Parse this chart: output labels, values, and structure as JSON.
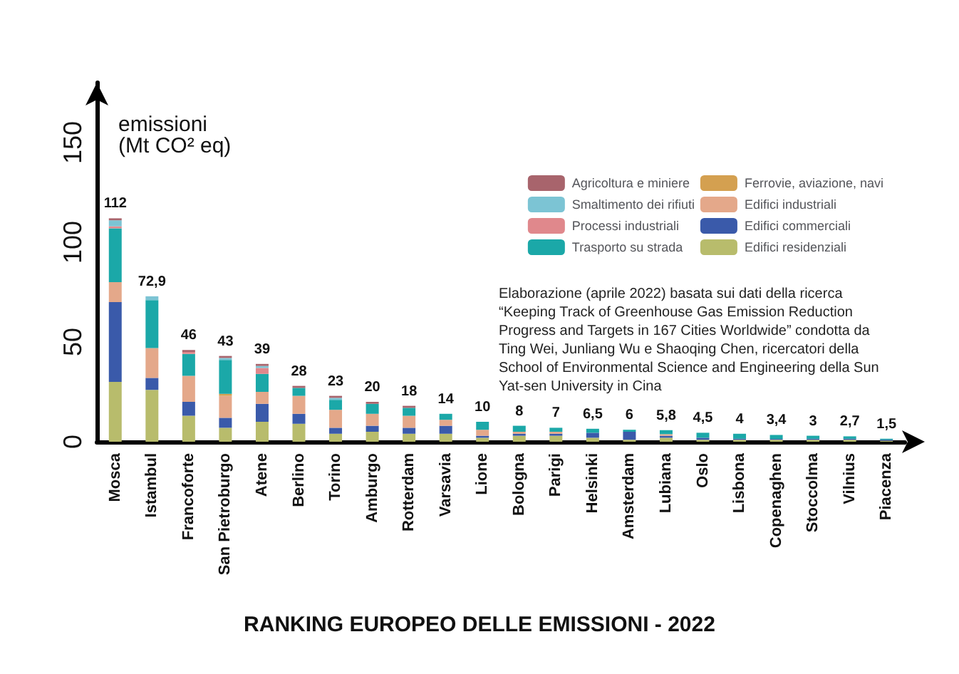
{
  "chart_data": {
    "type": "bar",
    "stacked": true,
    "title": "RANKING EUROPEO DELLE EMISSIONI - 2022",
    "ylabel": "emissioni\n(Mt CO² eq)",
    "categories": [
      "Mosca",
      "Istambul",
      "Francoforte",
      "San Pietroburgo",
      "Atene",
      "Berlino",
      "Torino",
      "Amburgo",
      "Rotterdam",
      "Varsavia",
      "Lione",
      "Bologna",
      "Parigi",
      "Helsinki",
      "Amsterdam",
      "Lubiana",
      "Oslo",
      "Lisbona",
      "Copenaghen",
      "Stoccolma",
      "Vilnius",
      "Piacenza"
    ],
    "series": [
      {
        "name": "Edifici residenziali",
        "color": "#b8bc6c",
        "values": [
          30,
          26,
          13,
          7,
          10,
          9,
          4,
          5,
          4,
          4,
          2,
          3,
          3,
          2,
          1,
          2,
          1,
          1,
          1,
          1,
          1,
          0.5
        ]
      },
      {
        "name": "Edifici commerciali",
        "color": "#3a5aaa",
        "values": [
          40,
          6,
          7,
          5,
          9,
          5,
          3,
          3,
          3,
          4,
          1,
          1,
          1,
          2.5,
          4,
          1,
          1,
          0.5,
          0.4,
          0.5,
          0.5,
          0.5
        ]
      },
      {
        "name": "Edifici industriali",
        "color": "#e4a88a",
        "values": [
          10,
          15,
          13,
          11,
          6,
          9,
          9,
          6,
          6,
          3,
          3,
          1,
          1,
          0,
          0,
          0.8,
          0,
          0,
          0,
          0,
          0,
          0
        ]
      },
      {
        "name": "Ferrovie, aviazione, navi",
        "color": "#d4a050",
        "values": [
          0,
          0,
          0,
          1,
          0,
          0,
          0,
          0,
          0,
          0,
          0,
          0,
          0,
          0,
          0,
          0,
          0,
          0,
          0,
          0,
          0,
          0
        ]
      },
      {
        "name": "Trasporto su strada",
        "color": "#1ba8a8",
        "values": [
          27,
          24,
          11,
          17,
          9,
          4,
          5,
          5,
          4,
          3,
          4,
          3,
          2,
          2,
          1,
          2,
          2.5,
          2.5,
          2,
          1.5,
          1.2,
          0.5
        ]
      },
      {
        "name": "Processi industriali",
        "color": "#e0888c",
        "values": [
          1,
          0,
          1,
          0,
          3,
          0,
          0,
          0,
          0,
          0,
          0,
          0,
          0,
          0,
          0,
          0,
          0,
          0,
          0,
          0,
          0,
          0
        ]
      },
      {
        "name": "Smaltimento dei rifiuti",
        "color": "#7cc4d4",
        "values": [
          3,
          1.9,
          0,
          1,
          1,
          0,
          1,
          0,
          0,
          0,
          0,
          0,
          0,
          0,
          0,
          0,
          0,
          0,
          0,
          0,
          0,
          0
        ]
      },
      {
        "name": "Agricoltura e miniere",
        "color": "#a8646c",
        "values": [
          1,
          0,
          1,
          1,
          1,
          1,
          1,
          1,
          1,
          0,
          0,
          0,
          0,
          0,
          0,
          0,
          0,
          0,
          0,
          0,
          0,
          0
        ]
      }
    ],
    "totals": [
      "112",
      "72,9",
      "46",
      "43",
      "39",
      "28",
      "23",
      "20",
      "18",
      "14",
      "10",
      "8",
      "7",
      "6,5",
      "6",
      "5,8",
      "4,5",
      "4",
      "3,4",
      "3",
      "2,7",
      "1,5"
    ],
    "ylim": [
      0,
      180
    ],
    "yticks": [
      0,
      50,
      100,
      150
    ],
    "grid": false,
    "legend": "top right",
    "annotations": [
      "Elaborazione (aprile 2022) basata sui dati della ricerca “Keeping Track of Greenhouse Gas Emission Reduction Progress and Targets in 167 Cities Worldwide” condotta da Ting Wei, Junliang Wu e Shaoqing Chen, ricercatori della School of Environmental Science and Engineering della Sun Yat-sen University in Cina"
    ]
  }
}
